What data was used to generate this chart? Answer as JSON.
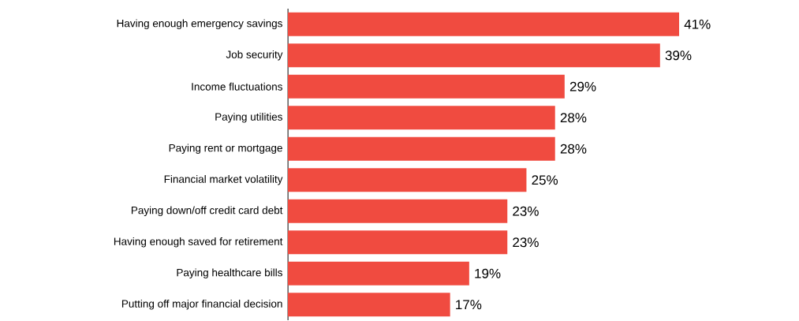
{
  "chart_data": {
    "type": "bar",
    "orientation": "horizontal",
    "color": "#f04b40",
    "categories": [
      "Having enough emergency savings",
      "Job security",
      "Income fluctuations",
      "Paying utilities",
      "Paying rent or mortgage",
      "Financial market volatility",
      "Paying down/off credit card debt",
      "Having enough saved for retirement",
      "Paying healthcare bills",
      "Putting off major financial decision"
    ],
    "values": [
      41,
      39,
      29,
      28,
      28,
      25,
      23,
      23,
      19,
      17
    ],
    "value_labels": [
      "41%",
      "39%",
      "29%",
      "28%",
      "28%",
      "25%",
      "23%",
      "23%",
      "19%",
      "17%"
    ]
  }
}
